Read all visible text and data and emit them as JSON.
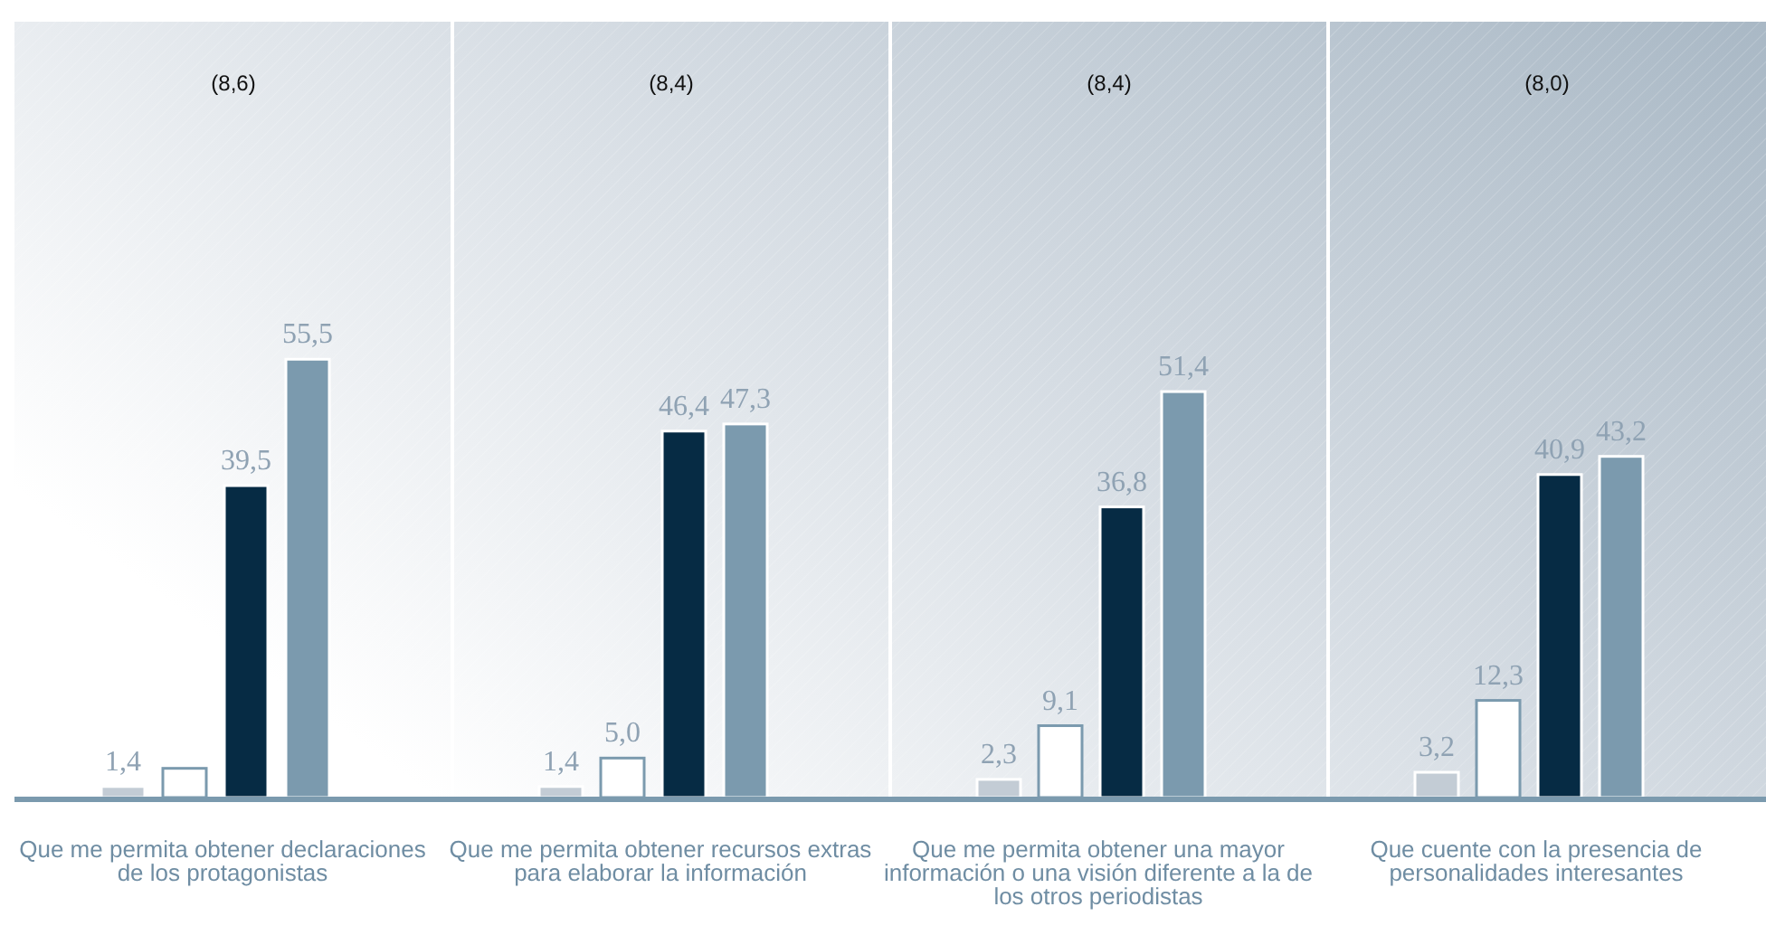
{
  "chart_data": {
    "type": "bar",
    "categories": [
      "Que me permita obtener declaraciones de los protagonistas",
      "Que me permita obtener recursos extras para elaborar la información",
      "Que me permita obtener una mayor información o una visión diferente a la de los otros periodistas",
      "Que cuente con la presencia de personalidades interesantes"
    ],
    "series": [
      {
        "color": "#c3ccd5",
        "values": [
          1.4,
          1.4,
          2.3,
          3.2
        ],
        "value_labels": [
          "1,4",
          "1,4",
          "2,3",
          "3,2"
        ]
      },
      {
        "color": "#ffffff",
        "values": [
          3.7,
          5.0,
          9.1,
          12.3
        ],
        "value_labels": [
          null,
          "5,0",
          "9,1",
          "12,3"
        ]
      },
      {
        "color": "#062b44",
        "values": [
          39.5,
          46.4,
          36.8,
          40.9
        ],
        "value_labels": [
          "39,5",
          "46,4",
          "36,8",
          "40,9"
        ]
      },
      {
        "color": "#7b9aae",
        "values": [
          55.5,
          47.3,
          51.4,
          43.2
        ],
        "value_labels": [
          "55,5",
          "47,3",
          "51,4",
          "43,2"
        ]
      }
    ],
    "annotations": [
      "(8,6)",
      "(8,4)",
      "(8,4)",
      "(8,0)"
    ]
  }
}
